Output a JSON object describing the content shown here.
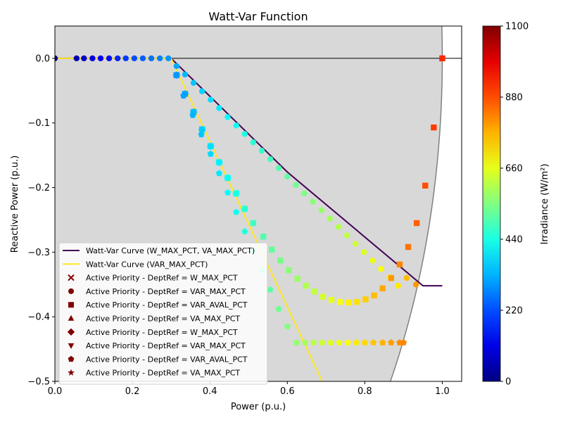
{
  "chart_data": {
    "type": "scatter",
    "title": "Watt-Var Function",
    "xlabel": "Power (p.u.)",
    "ylabel": "Reactive Power (p.u.)",
    "xlim": [
      0.0,
      1.05
    ],
    "ylim": [
      -0.5,
      0.05
    ],
    "x_ticks": [
      "0.0",
      "0.2",
      "0.4",
      "0.6",
      "0.8",
      "1.0"
    ],
    "y_ticks": [
      "0.0",
      "−0.1",
      "−0.2",
      "−0.3",
      "−0.4",
      "−0.5"
    ],
    "colorbar": {
      "label": "Irradiance",
      "units": "(W/m²)",
      "range": [
        0,
        1100
      ],
      "ticks": [
        "0",
        "220",
        "440",
        "660",
        "880",
        "1100"
      ],
      "colormap": "jet"
    },
    "curves": [
      {
        "name": "Watt-Var Curve (W_MAX_PCT, VA_MAX_PCT)",
        "color": "#440154",
        "x": [
          0.0,
          0.3,
          0.6,
          0.95,
          1.0
        ],
        "y": [
          0.0,
          0.0,
          -0.176,
          -0.352,
          -0.352
        ]
      },
      {
        "name": "Watt-Var Curve (VAR_MAX_PCT)",
        "color": "#fde725",
        "x": [
          0.0,
          0.3,
          0.69
        ],
        "y": [
          0.0,
          0.0,
          -0.5
        ]
      }
    ],
    "series": [
      {
        "name": "W_MAX_PCT",
        "marker": "x",
        "dept_ref": "W_MAX_PCT",
        "points": []
      },
      {
        "name": "VAR_MAX_PCT",
        "marker": "circle",
        "dept_ref": "VAR_MAX_PCT",
        "points": [
          [
            0.0,
            0.0,
            0
          ],
          [
            0.056,
            0.0,
            55
          ],
          [
            0.075,
            0.0,
            80
          ],
          [
            0.097,
            0.0,
            105
          ],
          [
            0.118,
            0.0,
            125
          ],
          [
            0.14,
            0.0,
            150
          ],
          [
            0.162,
            0.0,
            175
          ],
          [
            0.183,
            0.0,
            200
          ],
          [
            0.205,
            0.0,
            220
          ],
          [
            0.227,
            0.0,
            240
          ],
          [
            0.249,
            0.0,
            260
          ],
          [
            0.271,
            0.0,
            280
          ],
          [
            0.293,
            0.0,
            300
          ],
          [
            0.314,
            -0.012,
            320
          ],
          [
            0.336,
            -0.025,
            335
          ],
          [
            0.358,
            -0.038,
            350
          ],
          [
            0.38,
            -0.051,
            365
          ],
          [
            0.402,
            -0.064,
            380
          ],
          [
            0.424,
            -0.077,
            395
          ],
          [
            0.446,
            -0.091,
            410
          ],
          [
            0.468,
            -0.104,
            425
          ],
          [
            0.49,
            -0.117,
            440
          ],
          [
            0.512,
            -0.13,
            455
          ],
          [
            0.534,
            -0.143,
            470
          ],
          [
            0.556,
            -0.156,
            485
          ],
          [
            0.578,
            -0.17,
            500
          ],
          [
            0.6,
            -0.183,
            515
          ],
          [
            0.622,
            -0.196,
            530
          ],
          [
            0.644,
            -0.209,
            545
          ],
          [
            0.666,
            -0.222,
            560
          ],
          [
            0.688,
            -0.235,
            575
          ],
          [
            0.71,
            -0.248,
            590
          ],
          [
            0.732,
            -0.261,
            605
          ],
          [
            0.754,
            -0.274,
            620
          ],
          [
            0.776,
            -0.287,
            635
          ],
          [
            0.798,
            -0.3,
            650
          ],
          [
            0.82,
            -0.313,
            665
          ],
          [
            0.842,
            -0.326,
            680
          ],
          [
            0.864,
            -0.339,
            695
          ],
          [
            0.886,
            -0.352,
            710
          ],
          [
            0.908,
            -0.34,
            760
          ],
          [
            0.932,
            -0.35,
            800
          ]
        ]
      },
      {
        "name": "VAR_AVAL_PCT",
        "marker": "square",
        "dept_ref": "VAR_AVAL_PCT",
        "points": [
          [
            0.314,
            -0.026,
            300
          ],
          [
            0.336,
            -0.055,
            320
          ],
          [
            0.358,
            -0.083,
            340
          ],
          [
            0.38,
            -0.11,
            360
          ],
          [
            0.402,
            -0.136,
            380
          ],
          [
            0.424,
            -0.161,
            400
          ],
          [
            0.446,
            -0.185,
            420
          ],
          [
            0.468,
            -0.209,
            440
          ],
          [
            0.49,
            -0.233,
            460
          ],
          [
            0.512,
            -0.255,
            480
          ],
          [
            0.538,
            -0.276,
            500
          ],
          [
            0.56,
            -0.296,
            520
          ],
          [
            0.582,
            -0.313,
            540
          ],
          [
            0.604,
            -0.328,
            560
          ],
          [
            0.626,
            -0.341,
            580
          ],
          [
            0.648,
            -0.352,
            600
          ],
          [
            0.67,
            -0.361,
            620
          ],
          [
            0.692,
            -0.369,
            640
          ],
          [
            0.714,
            -0.374,
            660
          ],
          [
            0.736,
            -0.377,
            680
          ],
          [
            0.758,
            -0.378,
            700
          ],
          [
            0.78,
            -0.377,
            720
          ],
          [
            0.802,
            -0.373,
            740
          ],
          [
            0.824,
            -0.367,
            760
          ],
          [
            0.846,
            -0.356,
            780
          ],
          [
            0.868,
            -0.34,
            800
          ],
          [
            0.89,
            -0.319,
            820
          ],
          [
            0.912,
            -0.292,
            840
          ],
          [
            0.934,
            -0.255,
            860
          ],
          [
            0.956,
            -0.197,
            880
          ],
          [
            0.978,
            -0.107,
            900
          ],
          [
            1.0,
            0.0,
            920
          ]
        ]
      },
      {
        "name": "VA_MAX_PCT",
        "marker": "triangle-up",
        "dept_ref": "VA_MAX_PCT",
        "points": []
      },
      {
        "name": "W_MAX_PCT",
        "marker": "diamond",
        "dept_ref": "W_MAX_PCT",
        "points": [
          [
            0.314,
            -0.026,
            300
          ],
          [
            0.336,
            -0.055,
            320
          ],
          [
            0.358,
            -0.083,
            340
          ],
          [
            0.38,
            -0.11,
            360
          ],
          [
            0.402,
            -0.136,
            380
          ],
          [
            0.424,
            -0.161,
            400
          ],
          [
            0.446,
            -0.185,
            420
          ],
          [
            0.468,
            -0.209,
            440
          ],
          [
            0.49,
            -0.233,
            460
          ]
        ]
      },
      {
        "name": "VAR_MAX_PCT",
        "marker": "triangle-down",
        "dept_ref": "VAR_MAX_PCT",
        "points": [
          [
            0.314,
            -0.026,
            300
          ],
          [
            0.336,
            -0.055,
            320
          ],
          [
            0.358,
            -0.083,
            340
          ],
          [
            0.38,
            -0.11,
            360
          ],
          [
            0.402,
            -0.136,
            380
          ],
          [
            0.424,
            -0.161,
            400
          ],
          [
            0.446,
            -0.185,
            420
          ],
          [
            0.468,
            -0.209,
            440
          ],
          [
            0.49,
            -0.233,
            460
          ]
        ]
      },
      {
        "name": "VAR_AVAL_PCT",
        "marker": "pentagon",
        "dept_ref": "VAR_AVAL_PCT",
        "points": [
          [
            0.332,
            -0.058,
            310
          ],
          [
            0.356,
            -0.088,
            330
          ],
          [
            0.378,
            -0.118,
            350
          ],
          [
            0.402,
            -0.148,
            370
          ],
          [
            0.424,
            -0.178,
            390
          ],
          [
            0.446,
            -0.208,
            410
          ],
          [
            0.468,
            -0.238,
            430
          ],
          [
            0.49,
            -0.268,
            450
          ],
          [
            0.512,
            -0.298,
            470
          ],
          [
            0.534,
            -0.328,
            490
          ],
          [
            0.556,
            -0.358,
            510
          ],
          [
            0.578,
            -0.388,
            530
          ],
          [
            0.6,
            -0.415,
            550
          ],
          [
            0.624,
            -0.44,
            570
          ],
          [
            0.646,
            -0.44,
            590
          ],
          [
            0.668,
            -0.44,
            610
          ],
          [
            0.69,
            -0.44,
            630
          ],
          [
            0.712,
            -0.44,
            650
          ],
          [
            0.734,
            -0.44,
            670
          ],
          [
            0.756,
            -0.44,
            690
          ],
          [
            0.778,
            -0.44,
            710
          ],
          [
            0.8,
            -0.44,
            730
          ],
          [
            0.822,
            -0.44,
            750
          ],
          [
            0.846,
            -0.44,
            770
          ],
          [
            0.868,
            -0.44,
            790
          ],
          [
            0.89,
            -0.44,
            810
          ],
          [
            0.9,
            -0.44,
            820
          ]
        ]
      },
      {
        "name": "VA_MAX_PCT",
        "marker": "star",
        "dept_ref": "VA_MAX_PCT",
        "points": [
          [
            0.624,
            -0.44,
            570
          ],
          [
            0.646,
            -0.44,
            590
          ],
          [
            0.668,
            -0.44,
            610
          ],
          [
            0.69,
            -0.44,
            630
          ],
          [
            0.712,
            -0.44,
            650
          ],
          [
            0.734,
            -0.44,
            670
          ],
          [
            0.756,
            -0.44,
            690
          ],
          [
            0.778,
            -0.44,
            710
          ],
          [
            0.8,
            -0.44,
            730
          ],
          [
            0.822,
            -0.44,
            750
          ],
          [
            0.846,
            -0.44,
            770
          ],
          [
            0.868,
            -0.44,
            790
          ],
          [
            0.89,
            -0.44,
            810
          ],
          [
            0.9,
            -0.44,
            820
          ]
        ]
      }
    ],
    "legend": {
      "placement": "lower-left",
      "entries": [
        {
          "label": "Watt-Var Curve (W_MAX_PCT, VA_MAX_PCT)",
          "kind": "line",
          "color": "#440154"
        },
        {
          "label": "Watt-Var Curve (VAR_MAX_PCT)",
          "kind": "line",
          "color": "#fde725"
        },
        {
          "label": "Active Priority - DeptRef = W_MAX_PCT",
          "kind": "x",
          "color": "#800000"
        },
        {
          "label": "Active Priority - DeptRef = VAR_MAX_PCT",
          "kind": "circle",
          "color": "#800000"
        },
        {
          "label": "Active Priority - DeptRef = VAR_AVAL_PCT",
          "kind": "square",
          "color": "#800000"
        },
        {
          "label": "Active Priority - DeptRef = VA_MAX_PCT",
          "kind": "triangle-up",
          "color": "#800000"
        },
        {
          "label": "Active Priority - DeptRef = W_MAX_PCT",
          "kind": "diamond",
          "color": "#800000"
        },
        {
          "label": "Active Priority - DeptRef = VAR_MAX_PCT",
          "kind": "triangle-down",
          "color": "#800000"
        },
        {
          "label": "Active Priority - DeptRef = VAR_AVAL_PCT",
          "kind": "pentagon",
          "color": "#800000"
        },
        {
          "label": "Active Priority - DeptRef = VA_MAX_PCT",
          "kind": "star",
          "color": "#800000"
        }
      ]
    }
  }
}
